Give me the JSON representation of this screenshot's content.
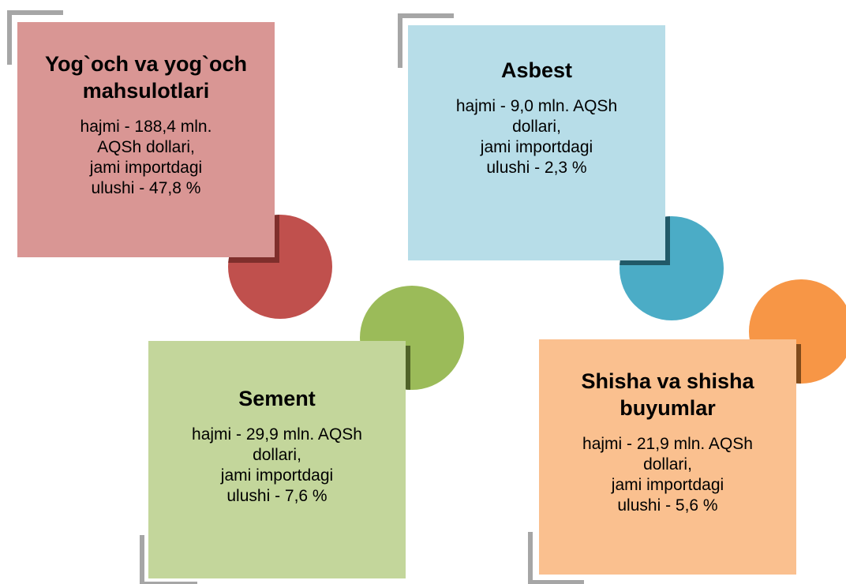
{
  "cards": [
    {
      "title": "Yog`och va yog`och mahsulotlari",
      "lines": [
        "hajmi - 188,4 mln.",
        "AQSh dollari,",
        "jami importdagi",
        "ulushi - 47,8 %"
      ]
    },
    {
      "title": "Asbest",
      "lines": [
        "hajmi - 9,0 mln. AQSh",
        "dollari,",
        "jami importdagi",
        "ulushi - 2,3 %"
      ]
    },
    {
      "title": "Sement",
      "lines": [
        "hajmi - 29,9 mln. AQSh",
        "dollari,",
        "jami importdagi",
        "ulushi - 7,6 %"
      ]
    },
    {
      "title": "Shisha va shisha buyumlar",
      "lines": [
        "hajmi - 21,9 mln. AQSh",
        "dollari,",
        "jami importdagi",
        "ulushi - 5,6 %"
      ]
    }
  ]
}
